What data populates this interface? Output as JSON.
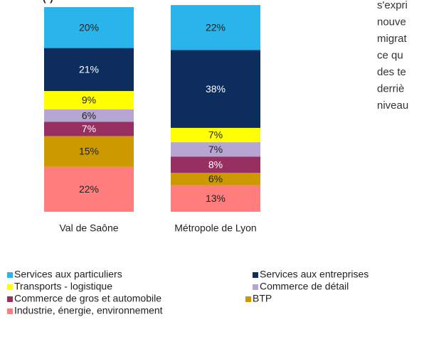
{
  "chart_data": {
    "type": "stacked_bar",
    "title": "(*)",
    "categories": [
      "Val de Saône",
      "Métropole de Lyon"
    ],
    "series": [
      {
        "name": "Services aux particuliers",
        "color": "#29b5ec",
        "values": [
          20,
          22
        ],
        "value_labels": [
          "20%",
          "22%"
        ]
      },
      {
        "name": "Services aux entreprises",
        "color": "#0d2d5e",
        "values": [
          21,
          38
        ],
        "value_labels": [
          "21%",
          "38%"
        ]
      },
      {
        "name": "Transports - logistique",
        "color": "#ffff00",
        "values": [
          9,
          7
        ],
        "value_labels": [
          "9%",
          "7%"
        ]
      },
      {
        "name": "Commerce de détail",
        "color": "#b6a6d4",
        "values": [
          6,
          7
        ],
        "value_labels": [
          "6%",
          "7%"
        ]
      },
      {
        "name": "Commerce de gros et automobile",
        "color": "#973060",
        "values": [
          7,
          8
        ],
        "value_labels": [
          "7%",
          "8%"
        ]
      },
      {
        "name": "BTP",
        "color": "#cc9a00",
        "values": [
          15,
          6
        ],
        "value_labels": [
          "15%",
          "6%"
        ]
      },
      {
        "name": "Industrie, énergie, environnement",
        "color": "#ff7d7d",
        "values": [
          22,
          13
        ],
        "value_labels": [
          "22%",
          "13%"
        ]
      }
    ],
    "ylim": [
      0,
      100
    ],
    "annotations": [
      "s'expri",
      "nouve",
      "migrat",
      "ce qu",
      "des te",
      "derriè",
      "niveau"
    ]
  }
}
